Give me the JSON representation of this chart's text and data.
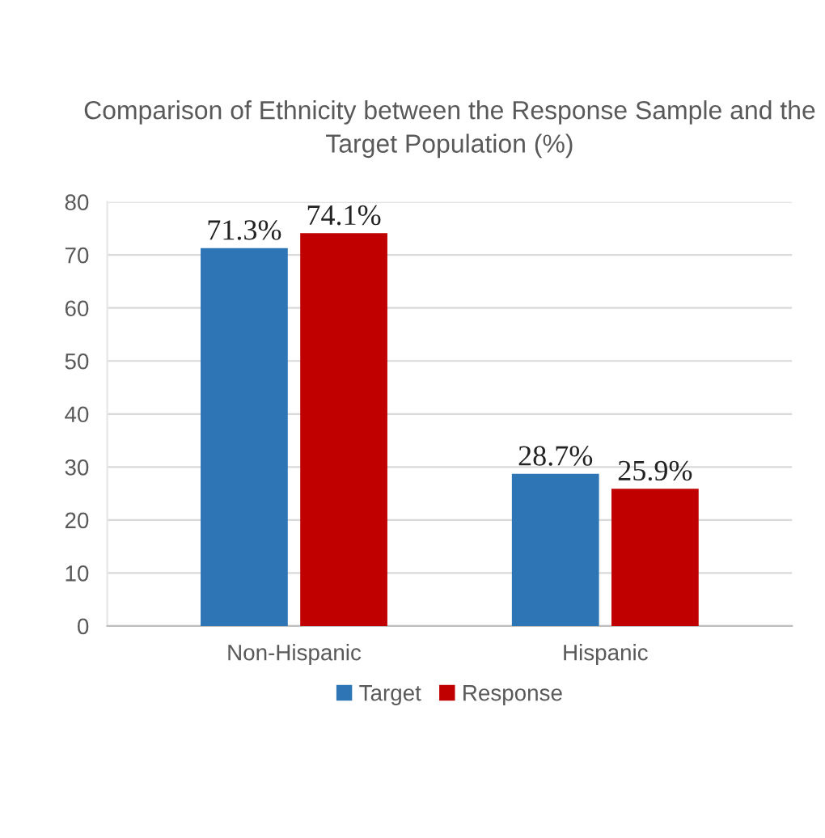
{
  "chart_data": {
    "type": "bar",
    "title": "Comparison of Ethnicity between the Response Sample and the\nTarget Population (%)",
    "categories": [
      "Non-Hispanic",
      "Hispanic"
    ],
    "series": [
      {
        "name": "Target",
        "color": "#2e75b6",
        "values": [
          71.3,
          28.7
        ],
        "value_labels": [
          "71.3%",
          "28.7%"
        ]
      },
      {
        "name": "Response",
        "color": "#c00000",
        "values": [
          74.1,
          25.9
        ],
        "value_labels": [
          "74.1%",
          "25.9%"
        ]
      }
    ],
    "ylim": [
      0,
      80
    ],
    "yticks": [
      0,
      10,
      20,
      30,
      40,
      50,
      60,
      70,
      80
    ],
    "grid": "y",
    "legend": "bottom"
  }
}
